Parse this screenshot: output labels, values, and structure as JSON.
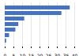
{
  "chart_data": {
    "type": "bar",
    "orientation": "horizontal",
    "categories": [
      null,
      null,
      null,
      null,
      null,
      null,
      null
    ],
    "values": [
      37.4,
      32.6,
      11.2,
      7.8,
      6.1,
      2.5,
      0.8
    ],
    "color": "#4472c4",
    "xlim": [
      0,
      40
    ],
    "xticks": [
      0,
      5,
      10,
      15,
      20,
      25,
      30,
      35,
      40
    ],
    "grid": true,
    "tick_labels": "x"
  }
}
